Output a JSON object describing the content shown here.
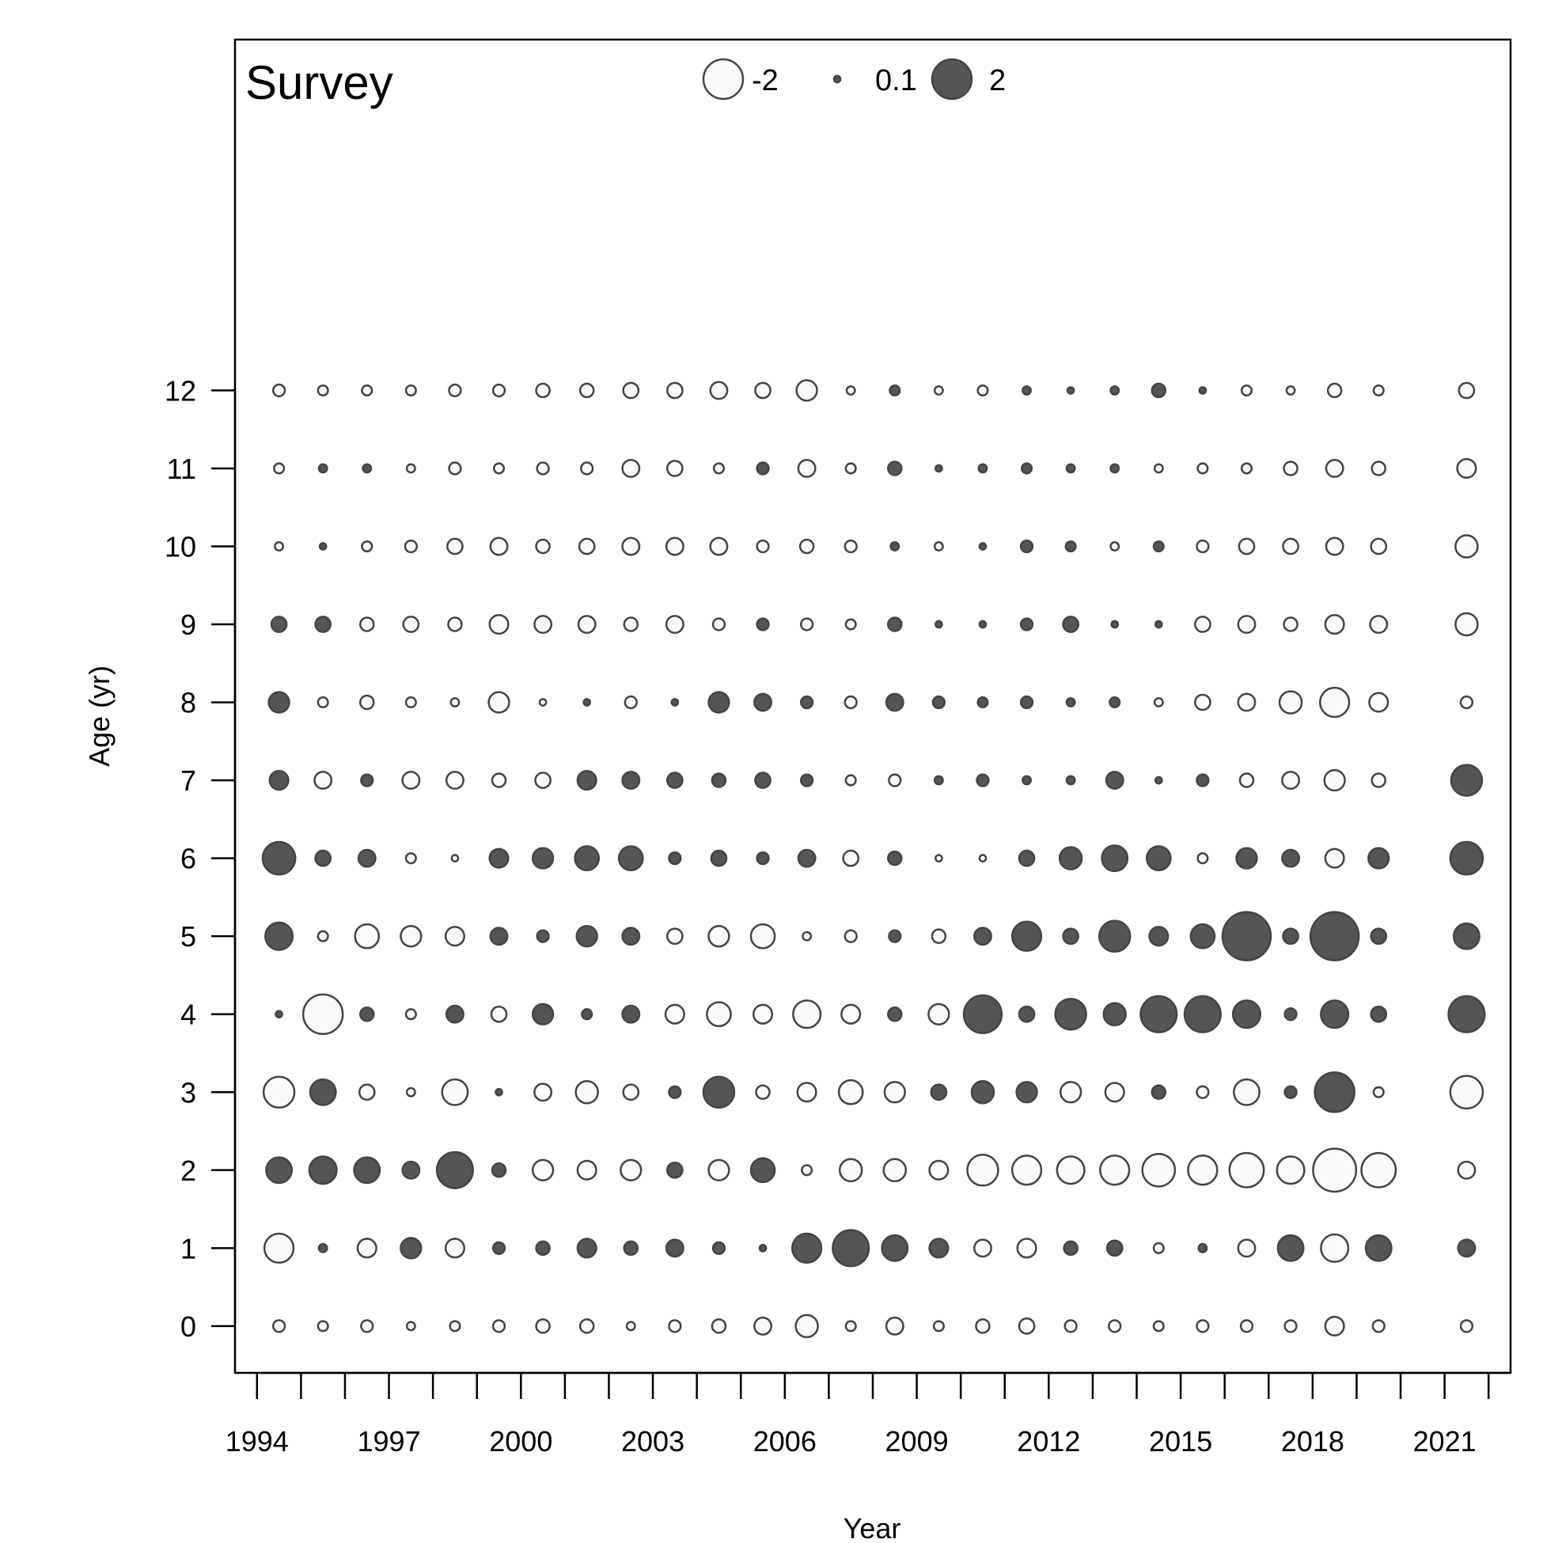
{
  "chart_data": {
    "type": "scatter",
    "title": "Survey",
    "xlabel": "Year",
    "ylabel": "Age (yr)",
    "xlim": [
      1993.5,
      2022.5
    ],
    "ylim": [
      -0.6,
      16.5
    ],
    "x_ticks": [
      1994,
      1995,
      1996,
      1997,
      1998,
      1999,
      2000,
      2001,
      2002,
      2003,
      2004,
      2005,
      2006,
      2007,
      2008,
      2009,
      2010,
      2011,
      2012,
      2013,
      2014,
      2015,
      2016,
      2017,
      2018,
      2019,
      2020,
      2021,
      2022
    ],
    "x_tick_labels": [
      "1994",
      "1997",
      "2000",
      "2003",
      "2006",
      "2009",
      "2012",
      "2015",
      "2018",
      "2021"
    ],
    "y_ticks": [
      0,
      1,
      2,
      3,
      4,
      5,
      6,
      7,
      8,
      9,
      10,
      11,
      12
    ],
    "grid": false,
    "legend": {
      "position": "top-center",
      "entries": [
        {
          "label": "-2",
          "value": -2
        },
        {
          "label": "0.1",
          "value": 0.1
        },
        {
          "label": "2",
          "value": 2
        }
      ]
    },
    "colors": {
      "positive_fill": "#555555",
      "negative_fill": "#fafafa",
      "stroke": "#444444"
    },
    "years": [
      1994.5,
      1995.5,
      1996.5,
      1997.5,
      1998.5,
      1999.5,
      2000.5,
      2001.5,
      2002.5,
      2003.5,
      2004.5,
      2005.5,
      2006.5,
      2007.5,
      2008.5,
      2009.5,
      2010.5,
      2011.5,
      2012.5,
      2013.5,
      2014.5,
      2015.5,
      2016.5,
      2017.5,
      2018.5,
      2019.5,
      2021.5
    ],
    "ages": [
      0,
      1,
      2,
      3,
      4,
      5,
      6,
      7,
      8,
      9,
      10,
      11,
      12
    ],
    "residuals": [
      [
        -0.4,
        -0.3,
        -0.4,
        -0.2,
        -0.3,
        -0.4,
        -0.5,
        -0.5,
        -0.2,
        -0.4,
        -0.5,
        -0.7,
        -1.0,
        -0.3,
        -0.7,
        -0.3,
        -0.5,
        -0.6,
        -0.4,
        -0.4,
        -0.3,
        -0.4,
        -0.4,
        -0.4,
        -0.8,
        -0.4,
        -0.4
      ],
      [
        -1.4,
        0.2,
        -0.8,
        0.9,
        -0.8,
        0.4,
        0.5,
        0.8,
        0.5,
        0.7,
        0.4,
        0.1,
        1.4,
        1.8,
        1.2,
        0.8,
        -0.7,
        -0.8,
        0.5,
        0.6,
        -0.3,
        0.2,
        -0.7,
        1.2,
        -1.3,
        1.2,
        0.7
      ],
      [
        1.2,
        1.3,
        1.2,
        0.7,
        1.8,
        0.5,
        -0.9,
        -0.8,
        -0.9,
        0.6,
        -0.9,
        1.1,
        -0.3,
        -1.0,
        -1.0,
        -0.8,
        -1.5,
        -1.4,
        -1.3,
        -1.4,
        -1.6,
        -1.4,
        -1.7,
        -1.3,
        -2.2,
        -1.7,
        -0.7
      ],
      [
        -1.5,
        1.2,
        -0.6,
        -0.2,
        -1.2,
        0.1,
        -0.7,
        -1.0,
        -0.6,
        0.4,
        1.5,
        -0.5,
        -0.8,
        -1.1,
        -0.9,
        0.6,
        1.0,
        0.9,
        -0.9,
        -0.8,
        0.5,
        -0.4,
        -1.2,
        0.4,
        2.0,
        -0.3,
        -1.6
      ],
      [
        0.1,
        -2.0,
        0.5,
        -0.3,
        0.7,
        -0.6,
        0.9,
        0.3,
        0.7,
        -0.8,
        -1.1,
        -0.8,
        -1.3,
        -0.8,
        0.5,
        -0.9,
        1.9,
        0.6,
        1.5,
        1.0,
        1.8,
        1.8,
        1.3,
        0.4,
        1.3,
        0.6,
        1.8
      ],
      [
        1.3,
        -0.3,
        -1.1,
        -0.9,
        -0.8,
        0.7,
        0.4,
        0.9,
        0.7,
        -0.6,
        -0.9,
        -1.1,
        -0.2,
        -0.4,
        0.4,
        -0.5,
        0.7,
        1.4,
        0.6,
        1.5,
        0.8,
        1.1,
        2.5,
        0.6,
        2.5,
        0.6,
        1.2
      ],
      [
        1.6,
        0.6,
        0.7,
        -0.3,
        -0.1,
        0.8,
        0.9,
        1.1,
        1.1,
        0.4,
        0.6,
        0.4,
        0.7,
        -0.6,
        0.5,
        -0.1,
        -0.1,
        0.6,
        1.0,
        1.2,
        1.1,
        -0.3,
        0.9,
        0.7,
        -0.8,
        0.9,
        1.6
      ],
      [
        0.8,
        -0.7,
        0.4,
        -0.7,
        -0.7,
        -0.5,
        -0.6,
        0.8,
        0.7,
        0.6,
        0.5,
        0.6,
        0.4,
        -0.3,
        -0.4,
        0.2,
        0.4,
        0.2,
        0.2,
        0.7,
        0.1,
        0.4,
        -0.5,
        -0.7,
        -0.9,
        -0.5,
        1.5
      ],
      [
        0.9,
        -0.3,
        -0.5,
        -0.3,
        -0.2,
        -0.9,
        -0.1,
        0.1,
        -0.4,
        0.1,
        0.9,
        0.7,
        0.4,
        -0.4,
        0.7,
        0.4,
        0.3,
        0.4,
        0.2,
        0.3,
        -0.2,
        -0.6,
        -0.7,
        -1.0,
        -1.4,
        -0.8,
        -0.4
      ],
      [
        0.6,
        0.6,
        -0.5,
        -0.6,
        -0.5,
        -0.8,
        -0.7,
        -0.7,
        -0.5,
        -0.7,
        -0.4,
        0.4,
        -0.4,
        -0.3,
        0.5,
        0.1,
        0.1,
        0.4,
        0.6,
        0.1,
        0.1,
        -0.6,
        -0.7,
        -0.5,
        -0.8,
        -0.7,
        -1.0
      ],
      [
        -0.2,
        0.1,
        -0.3,
        -0.4,
        -0.6,
        -0.7,
        -0.5,
        -0.6,
        -0.7,
        -0.7,
        -0.7,
        -0.4,
        -0.5,
        -0.4,
        0.2,
        -0.2,
        0.1,
        0.4,
        0.3,
        -0.2,
        0.3,
        -0.4,
        -0.6,
        -0.6,
        -0.7,
        -0.6,
        -1.0
      ],
      [
        -0.3,
        0.2,
        0.2,
        -0.2,
        -0.4,
        -0.3,
        -0.4,
        -0.4,
        -0.7,
        -0.6,
        -0.3,
        0.4,
        -0.7,
        -0.3,
        0.5,
        0.1,
        0.2,
        0.3,
        0.2,
        0.2,
        -0.2,
        -0.3,
        -0.3,
        -0.5,
        -0.7,
        -0.5,
        -0.8
      ],
      [
        -0.4,
        -0.3,
        -0.3,
        -0.3,
        -0.4,
        -0.4,
        -0.5,
        -0.5,
        -0.6,
        -0.6,
        -0.7,
        -0.6,
        -0.9,
        -0.2,
        0.3,
        -0.2,
        -0.3,
        0.2,
        0.1,
        0.2,
        0.5,
        0.1,
        -0.3,
        -0.2,
        -0.5,
        -0.3,
        -0.6
      ]
    ]
  }
}
